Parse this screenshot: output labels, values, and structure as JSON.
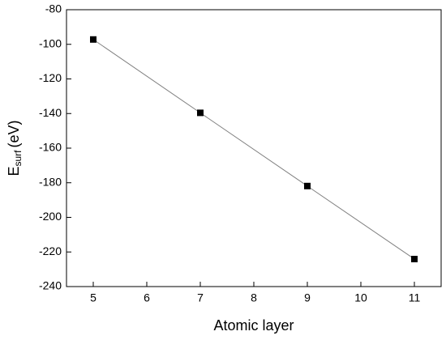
{
  "chart_data": {
    "type": "line",
    "x_label": "Atomic layer",
    "y_label": {
      "main": "E",
      "subscript": "surf",
      "unit": "(eV)"
    },
    "x": [
      5,
      7,
      9,
      11
    ],
    "series": [
      {
        "color": "#000000",
        "line_color": "#808080",
        "values": [
          -97.2,
          -139.6,
          -181.9,
          -224.1
        ]
      }
    ],
    "xlim": [
      4.5,
      11.5
    ],
    "xticks": [
      5,
      6,
      7,
      8,
      9,
      10,
      11
    ],
    "ylim": [
      -240,
      -80
    ],
    "yticks": [
      -240,
      -220,
      -200,
      -180,
      -160,
      -140,
      -120,
      -100,
      -80
    ],
    "grid": false
  }
}
